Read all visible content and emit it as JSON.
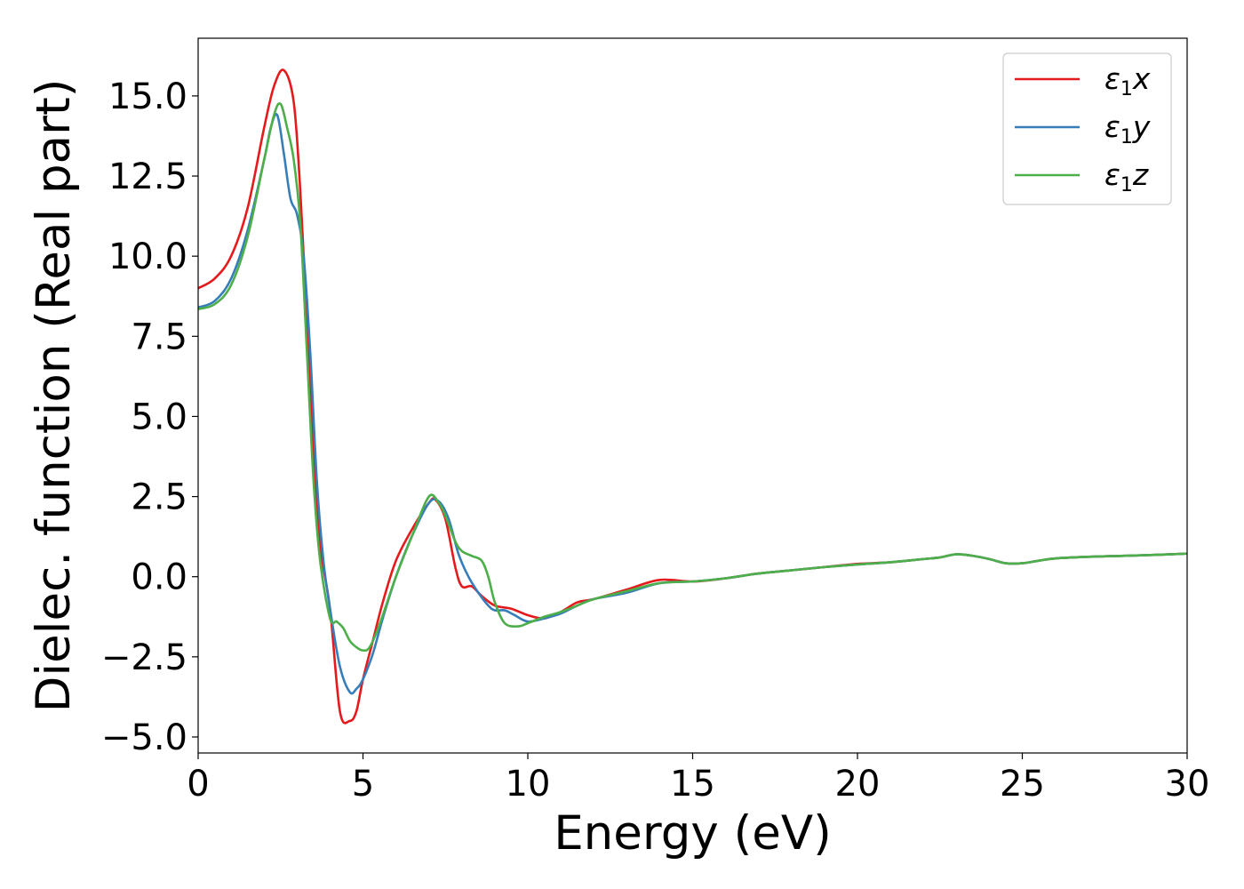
{
  "chart_data": {
    "type": "line",
    "xlabel": "Energy (eV)",
    "ylabel": "Dielec. function (Real part)",
    "xlim": [
      0,
      30
    ],
    "ylim": [
      -5.5,
      16.8
    ],
    "xticks": [
      0,
      5,
      10,
      15,
      20,
      25,
      30
    ],
    "xtick_labels": [
      "0",
      "5",
      "10",
      "15",
      "20",
      "25",
      "30"
    ],
    "yticks": [
      -5,
      -2.5,
      0,
      2.5,
      5,
      7.5,
      10,
      12.5,
      15
    ],
    "ytick_labels": [
      "−5.0",
      "−2.5",
      "0.0",
      "2.5",
      "5.0",
      "7.5",
      "10.0",
      "12.5",
      "15.0"
    ],
    "grid": false,
    "legend_position": "top-right",
    "series": [
      {
        "name": "ε",
        "name_sub": "1",
        "name_suffix": "x",
        "color": "#e41a1c",
        "x": [
          0,
          0.5,
          1.0,
          1.5,
          2.0,
          2.3,
          2.6,
          2.9,
          3.1,
          3.3,
          3.5,
          3.7,
          4.0,
          4.3,
          4.6,
          4.8,
          5.0,
          5.3,
          5.6,
          6.0,
          6.5,
          7.0,
          7.2,
          7.5,
          7.8,
          8.0,
          8.3,
          8.6,
          9.0,
          9.5,
          10.0,
          10.5,
          11.0,
          11.5,
          12.0,
          13.0,
          14.0,
          15.0,
          16.0,
          17.0,
          18.0,
          19.0,
          20.0,
          21.0,
          22.0,
          22.5,
          23.0,
          23.5,
          24.0,
          24.5,
          25.0,
          25.5,
          26.0,
          27.0,
          28.0,
          29.0,
          30.0
        ],
        "y": [
          9.0,
          9.3,
          10.0,
          11.5,
          14.0,
          15.3,
          15.8,
          14.8,
          12.0,
          8.0,
          4.0,
          1.0,
          -1.0,
          -4.2,
          -4.5,
          -4.2,
          -3.2,
          -2.0,
          -0.8,
          0.5,
          1.5,
          2.3,
          2.4,
          1.8,
          0.3,
          -0.3,
          -0.3,
          -0.6,
          -0.9,
          -1.0,
          -1.2,
          -1.3,
          -1.1,
          -0.8,
          -0.7,
          -0.4,
          -0.1,
          -0.15,
          -0.05,
          0.1,
          0.2,
          0.3,
          0.4,
          0.45,
          0.55,
          0.6,
          0.7,
          0.65,
          0.55,
          0.42,
          0.42,
          0.5,
          0.57,
          0.62,
          0.65,
          0.68,
          0.72
        ]
      },
      {
        "name": "ε",
        "name_sub": "1",
        "name_suffix": "y",
        "color": "#377eb8",
        "x": [
          0,
          0.5,
          1.0,
          1.5,
          2.0,
          2.2,
          2.4,
          2.6,
          2.8,
          3.0,
          3.2,
          3.4,
          3.6,
          3.8,
          4.0,
          4.3,
          4.6,
          4.8,
          5.0,
          5.3,
          5.6,
          6.0,
          6.5,
          7.0,
          7.3,
          7.6,
          7.9,
          8.2,
          8.5,
          8.8,
          9.0,
          9.3,
          9.6,
          10.0,
          10.5,
          11.0,
          11.5,
          12.0,
          13.0,
          14.0,
          15.0,
          16.0,
          17.0,
          18.0,
          19.0,
          20.0,
          21.0,
          22.0,
          22.5,
          23.0,
          23.5,
          24.0,
          24.5,
          25.0,
          25.5,
          26.0,
          27.0,
          28.0,
          29.0,
          30.0
        ],
        "y": [
          8.4,
          8.6,
          9.3,
          10.8,
          13.0,
          14.0,
          14.4,
          13.2,
          11.8,
          11.3,
          10.0,
          7.0,
          3.0,
          0.5,
          -1.0,
          -2.8,
          -3.6,
          -3.5,
          -3.2,
          -2.4,
          -1.3,
          0.0,
          1.3,
          2.3,
          2.35,
          1.8,
          0.7,
          0.0,
          -0.5,
          -0.9,
          -1.05,
          -1.05,
          -1.2,
          -1.4,
          -1.3,
          -1.15,
          -0.9,
          -0.7,
          -0.5,
          -0.2,
          -0.15,
          -0.05,
          0.1,
          0.2,
          0.3,
          0.38,
          0.45,
          0.55,
          0.6,
          0.7,
          0.65,
          0.55,
          0.42,
          0.42,
          0.5,
          0.57,
          0.62,
          0.65,
          0.68,
          0.72
        ]
      },
      {
        "name": "ε",
        "name_sub": "1",
        "name_suffix": "z",
        "color": "#4daf4a",
        "x": [
          0,
          0.5,
          1.0,
          1.5,
          2.0,
          2.3,
          2.5,
          2.7,
          2.9,
          3.1,
          3.3,
          3.5,
          3.7,
          4.0,
          4.2,
          4.4,
          4.6,
          4.8,
          5.0,
          5.2,
          5.5,
          6.0,
          6.5,
          7.0,
          7.3,
          7.5,
          7.8,
          8.0,
          8.3,
          8.6,
          8.8,
          9.0,
          9.3,
          9.7,
          10.0,
          10.5,
          11.0,
          11.5,
          12.0,
          13.0,
          14.0,
          15.0,
          16.0,
          17.0,
          18.0,
          19.0,
          20.0,
          21.0,
          22.0,
          22.5,
          23.0,
          23.5,
          24.0,
          24.5,
          25.0,
          25.5,
          26.0,
          27.0,
          28.0,
          29.0,
          30.0
        ],
        "y": [
          8.35,
          8.5,
          9.1,
          10.6,
          13.0,
          14.4,
          14.75,
          14.0,
          13.0,
          11.0,
          7.0,
          3.0,
          0.5,
          -1.3,
          -1.4,
          -1.6,
          -2.0,
          -2.2,
          -2.3,
          -2.2,
          -1.5,
          0.0,
          1.3,
          2.5,
          2.3,
          1.9,
          1.1,
          0.8,
          0.65,
          0.5,
          0.0,
          -0.8,
          -1.45,
          -1.55,
          -1.45,
          -1.25,
          -1.1,
          -0.9,
          -0.7,
          -0.45,
          -0.2,
          -0.15,
          -0.05,
          0.1,
          0.2,
          0.3,
          0.38,
          0.45,
          0.55,
          0.6,
          0.7,
          0.65,
          0.55,
          0.42,
          0.42,
          0.5,
          0.57,
          0.62,
          0.65,
          0.68,
          0.72
        ]
      }
    ]
  }
}
